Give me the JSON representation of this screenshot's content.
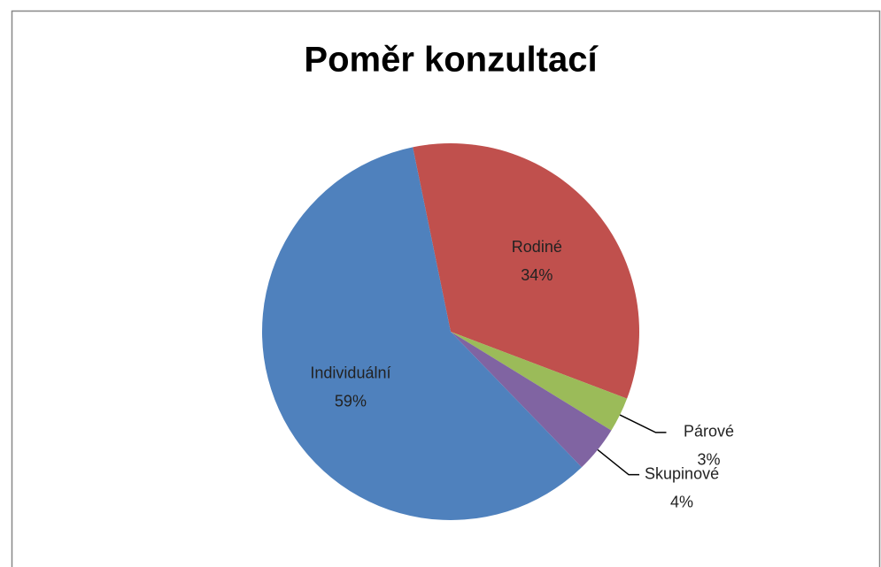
{
  "chart_data": {
    "type": "pie",
    "title": "Poměr konzultací",
    "categories": [
      "Rodiné",
      "Párové",
      "Skupinové",
      "Individuální"
    ],
    "values": [
      34,
      3,
      4,
      59
    ],
    "value_labels": [
      "34%",
      "3%",
      "4%",
      "59%"
    ],
    "colors": [
      "#c0504d",
      "#9bbb59",
      "#8064a2",
      "#4f81bd"
    ]
  }
}
